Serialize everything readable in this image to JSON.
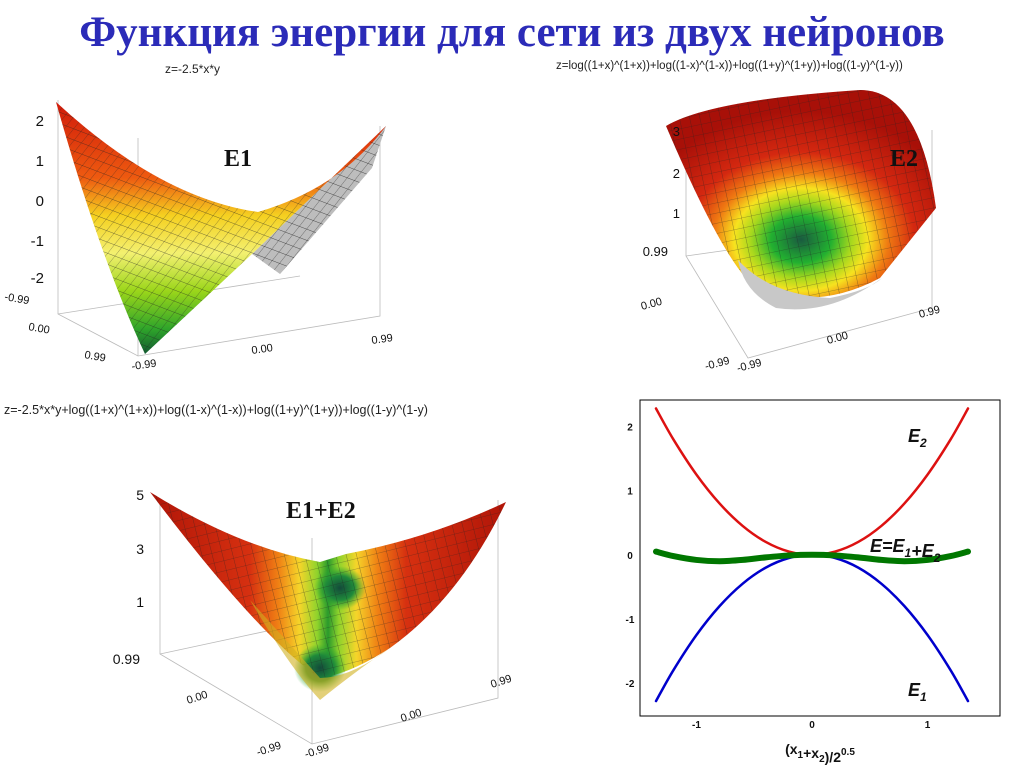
{
  "title": "Функция энергии для сети из двух нейронов",
  "panels": {
    "e1": {
      "formula": "z=-2.5*x*y",
      "tag": "E1",
      "z_ticks": [
        "2",
        "1",
        "0",
        "-1",
        "-2"
      ],
      "axis_ticks": [
        "-0.99",
        "0.00",
        "0.99",
        "-0.99",
        "0.00",
        "0.99"
      ]
    },
    "e2": {
      "formula": "z=log((1+x)^(1+x))+log((1-x)^(1-x))+log((1+y)^(1+y))+log((1-y)^(1-y))",
      "tag": "E2",
      "z_ticks": [
        "3",
        "2",
        "1",
        "0.99"
      ],
      "axis_ticks": [
        "0.00",
        "-0.99",
        "0.99",
        "0.00",
        "-0.99"
      ]
    },
    "sum": {
      "formula": "z=-2.5*x*y+log((1+x)^(1+x))+log((1-x)^(1-x))+log((1+y)^(1+y))+log((1-y)^(1-y)",
      "tag": "E1+E2",
      "z_ticks": [
        "5",
        "3",
        "1",
        "0.99"
      ],
      "axis_ticks": [
        "0.00",
        "-0.99",
        "-0.99",
        "0.00",
        "0.99"
      ]
    }
  },
  "colors": {
    "title": "#2b2bb8",
    "e1": "#0000cc",
    "e2": "#dd1111",
    "sum": "#007700"
  },
  "chart_data": {
    "type": "line",
    "xlabel": "(x1+x2)/2^0.5",
    "xlim": [
      -1.35,
      1.35
    ],
    "ylim": [
      -2.45,
      2.35
    ],
    "xticks": [
      "-1",
      "0",
      "1"
    ],
    "yticks": [
      "2",
      "1",
      "0",
      "-1",
      "-2"
    ],
    "series": [
      {
        "name": "E2",
        "color": "#dd1111",
        "x": [
          -1.35,
          -1.2,
          -1.0,
          -0.8,
          -0.6,
          -0.4,
          -0.2,
          0,
          0.2,
          0.4,
          0.6,
          0.8,
          1.0,
          1.2,
          1.35
        ],
        "y": [
          2.28,
          1.8,
          1.25,
          0.8,
          0.45,
          0.2,
          0.05,
          0,
          0.05,
          0.2,
          0.45,
          0.8,
          1.25,
          1.8,
          2.28
        ]
      },
      {
        "name": "E1",
        "color": "#0000cc",
        "x": [
          -1.35,
          -1.2,
          -1.0,
          -0.8,
          -0.6,
          -0.4,
          -0.2,
          0,
          0.2,
          0.4,
          0.6,
          0.8,
          1.0,
          1.2,
          1.35
        ],
        "y": [
          -2.28,
          -1.8,
          -1.25,
          -0.8,
          -0.45,
          -0.2,
          -0.05,
          0,
          -0.05,
          -0.2,
          -0.45,
          -0.8,
          -1.25,
          -1.8,
          -2.28
        ]
      },
      {
        "name": "E=E1+E2",
        "color": "#007700",
        "x": [
          -1.35,
          -1.2,
          -1.0,
          -0.8,
          -0.6,
          -0.4,
          -0.2,
          0,
          0.2,
          0.4,
          0.6,
          0.8,
          1.0,
          1.2,
          1.35
        ],
        "y": [
          0.05,
          -0.02,
          -0.08,
          -0.1,
          -0.08,
          -0.04,
          -0.01,
          0,
          -0.01,
          -0.04,
          -0.08,
          -0.1,
          -0.08,
          -0.02,
          0.05
        ]
      }
    ],
    "labels": [
      {
        "text": "E2",
        "series": "E2"
      },
      {
        "text": "E=E1+E2",
        "series": "E=E1+E2"
      },
      {
        "text": "E1",
        "series": "E1"
      }
    ]
  }
}
